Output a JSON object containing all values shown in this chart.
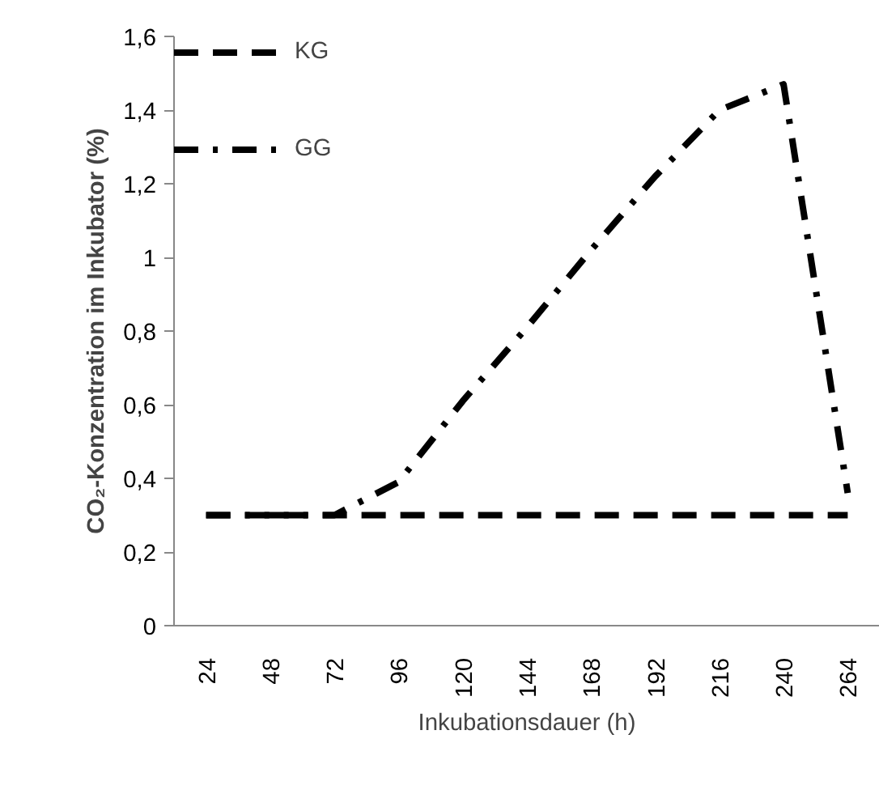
{
  "chart_data": {
    "type": "line",
    "xlabel": "Inkubationsdauer (h)",
    "ylabel": "CO₂-Konzentration im Inkubator (%)",
    "categories": [
      "24",
      "48",
      "72",
      "96",
      "120",
      "144",
      "168",
      "192",
      "216",
      "240",
      "264"
    ],
    "ylim": [
      0,
      1.6
    ],
    "yticks": [
      0,
      {
        "value": 0.2,
        "label": "0,2"
      },
      {
        "value": 0.4,
        "label": "0,4"
      },
      {
        "value": 0.6,
        "label": "0,6"
      },
      {
        "value": 0.8,
        "label": "0,8"
      },
      1,
      {
        "value": 1.2,
        "label": "1,2"
      },
      {
        "value": 1.4,
        "label": "1,4"
      },
      {
        "value": 1.6,
        "label": "1,6"
      }
    ],
    "grid": false,
    "legend": "top left",
    "marker": "none",
    "series": [
      {
        "name": "KG",
        "color": "#000000",
        "line_style": "dashed",
        "values": [
          0.3,
          0.3,
          0.3,
          0.3,
          0.3,
          0.3,
          0.3,
          0.3,
          0.3,
          0.3,
          0.3
        ]
      },
      {
        "name": "GG",
        "color": "#000000",
        "line_style": "dashdot",
        "values": [
          0.3,
          0.3,
          0.3,
          0.39,
          0.61,
          0.81,
          1.02,
          1.22,
          1.4,
          1.47,
          0.36
        ]
      }
    ]
  }
}
